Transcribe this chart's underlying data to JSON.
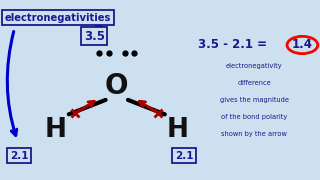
{
  "bg_color": "#cde0f0",
  "title_text": "electronegativities",
  "o_label": "O",
  "h_label": "H",
  "en_o": "3.5",
  "en_h": "2.1",
  "equation_text": "3.5 - 2.1 =",
  "result_text": "1.4",
  "desc_lines": [
    "electronegativity",
    "difference",
    "gives the magnitude",
    "of the bond polarity",
    "shown by the arrow"
  ],
  "dark_navy": "#1a1a8c",
  "red_color": "#aa0000",
  "blue_color": "#0000cc",
  "black": "#111111",
  "ox": 0.365,
  "oy": 0.52,
  "hx_l": 0.175,
  "hy_l": 0.28,
  "hx_r": 0.555,
  "hy_r": 0.28
}
